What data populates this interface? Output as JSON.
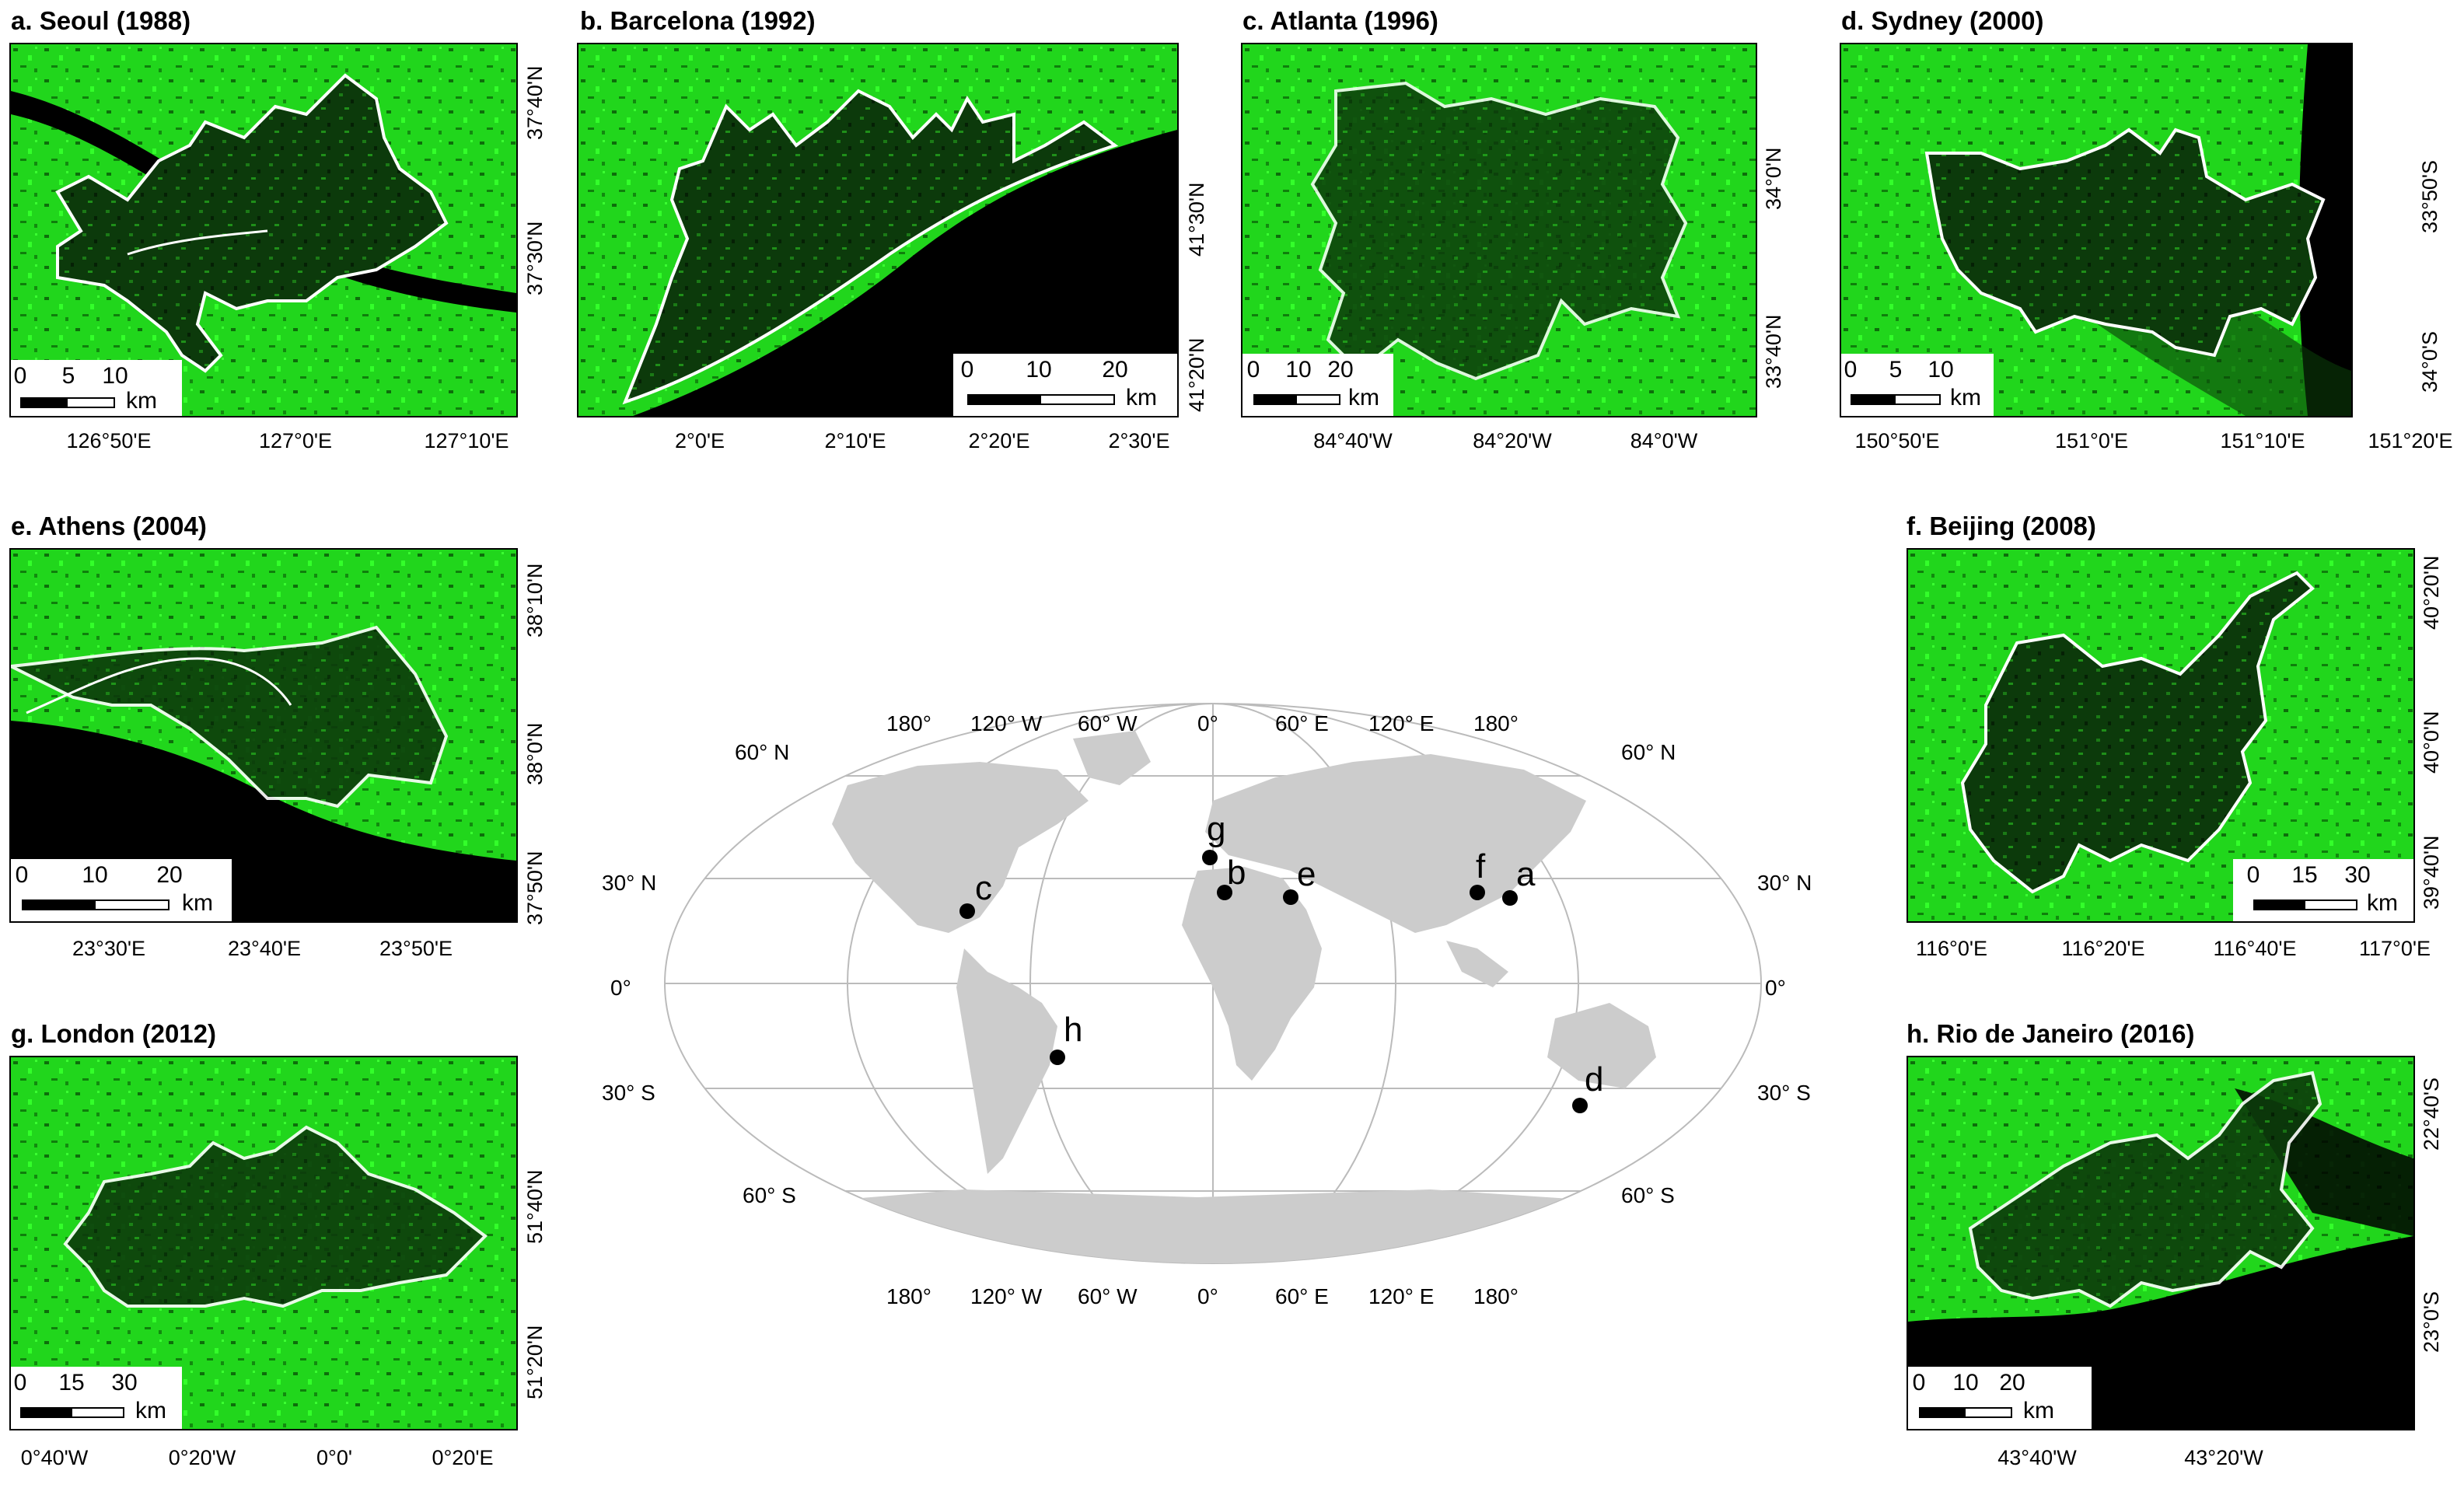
{
  "panels": {
    "seoul": {
      "title": "a. Seoul (1988)",
      "scale": [
        "0",
        "5",
        "10"
      ],
      "unit": "km",
      "xticks": [
        "126°50'E",
        "127°0'E",
        "127°10'E"
      ],
      "yticks": [
        "37°40'N",
        "37°30'N"
      ]
    },
    "barcelona": {
      "title": "b. Barcelona (1992)",
      "scale": [
        "0",
        "10",
        "20"
      ],
      "unit": "km",
      "xticks": [
        "2°0'E",
        "2°10'E",
        "2°20'E",
        "2°30'E"
      ],
      "yticks": [
        "41°30'N",
        "41°20'N"
      ]
    },
    "atlanta": {
      "title": "c. Atlanta (1996)",
      "scale": [
        "0",
        "10",
        "20"
      ],
      "unit": "km",
      "xticks": [
        "84°40'W",
        "84°20'W",
        "84°0'W"
      ],
      "yticks": [
        "34°0'N",
        "33°40'N"
      ]
    },
    "sydney": {
      "title": "d. Sydney (2000)",
      "scale": [
        "0",
        "5",
        "10"
      ],
      "unit": "km",
      "xticks": [
        "150°50'E",
        "151°0'E",
        "151°10'E",
        "151°20'E"
      ],
      "yticks": [
        "33°50'S",
        "34°0'S"
      ]
    },
    "athens": {
      "title": "e. Athens (2004)",
      "scale": [
        "0",
        "10",
        "20"
      ],
      "unit": "km",
      "xticks": [
        "23°30'E",
        "23°40'E",
        "23°50'E"
      ],
      "yticks": [
        "38°10'N",
        "38°0'N",
        "37°50'N"
      ]
    },
    "beijing": {
      "title": "f. Beijing (2008)",
      "scale": [
        "0",
        "15",
        "30"
      ],
      "unit": "km",
      "xticks": [
        "116°0'E",
        "116°20'E",
        "116°40'E",
        "117°0'E"
      ],
      "yticks": [
        "40°20'N",
        "40°0'N",
        "39°40'N"
      ]
    },
    "london": {
      "title": "g. London (2012)",
      "scale": [
        "0",
        "15",
        "30"
      ],
      "unit": "km",
      "xticks": [
        "0°40'W",
        "0°20'W",
        "0°0'",
        "0°20'E"
      ],
      "yticks": [
        "51°40'N",
        "51°20'N"
      ]
    },
    "rio": {
      "title": "h. Rio de Janeiro (2016)",
      "scale": [
        "0",
        "10",
        "20"
      ],
      "unit": "km",
      "xticks": [
        "43°40'W",
        "43°20'W"
      ],
      "yticks": [
        "22°40'S",
        "23°0'S"
      ]
    }
  },
  "world_map": {
    "top_lon": [
      "180°",
      "120° W",
      "60° W",
      "0°",
      "60° E",
      "120° E",
      "180°"
    ],
    "bottom_lon": [
      "180°",
      "120° W",
      "60° W",
      "0°",
      "60° E",
      "120° E",
      "180°"
    ],
    "left_lat": [
      "60° N",
      "30° N",
      "0°",
      "30° S",
      "60° S"
    ],
    "right_lat": [
      "60° N",
      "30° N",
      "0°",
      "30° S",
      "60° S"
    ],
    "cities": [
      "a",
      "b",
      "c",
      "d",
      "e",
      "f",
      "g",
      "h"
    ]
  },
  "colors": {
    "vegetation": "#22e61e",
    "urban": "#0a2a0a",
    "water": "#000000",
    "land": "#cccccc",
    "boundary": "#ffffff"
  }
}
